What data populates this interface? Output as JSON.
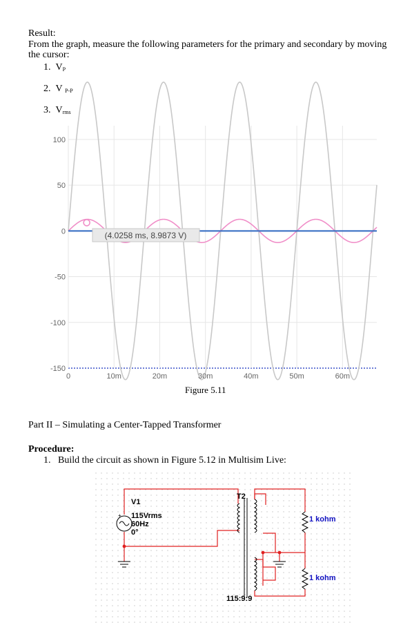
{
  "result": {
    "heading": "Result:",
    "instructions_line1": "From the graph, measure the following parameters for the primary and secondary by moving",
    "instructions_line2": "the cursor:",
    "items": [
      {
        "num": "1.",
        "base": "V",
        "sub": "P"
      },
      {
        "num": "2.",
        "base": "V",
        "sub": "P-P"
      },
      {
        "num": "3.",
        "base": "V",
        "sub": "rms"
      }
    ]
  },
  "chart_data": {
    "type": "line",
    "x_tick_labels": [
      "0",
      "10m",
      "20m",
      "30m",
      "40m",
      "50m",
      "60m"
    ],
    "x_ticks": [
      0,
      0.01,
      0.02,
      0.03,
      0.04,
      0.05,
      0.06
    ],
    "y_tick_labels": [
      "100",
      "50",
      "0",
      "-50",
      "-100",
      "-150"
    ],
    "y_ticks": [
      100,
      50,
      0,
      -50,
      -100,
      -150
    ],
    "xlim": [
      0,
      0.0675
    ],
    "ylim": [
      -150,
      115
    ],
    "grid": true,
    "series": [
      {
        "color": "#c8c8c8",
        "amplitude": 162.6,
        "frequency_hz": 60,
        "phase": "sine"
      },
      {
        "color": "#f08ec8",
        "amplitude": 12.7,
        "frequency_hz": 60,
        "phase": "sine"
      },
      {
        "color": "#7030a0",
        "amplitude": 0,
        "frequency_hz": 60,
        "phase": "flat"
      },
      {
        "color": "#3a78c8",
        "amplitude": 0,
        "frequency_hz": 60,
        "phase": "flat"
      }
    ],
    "cursor": {
      "x": 0.0040258,
      "y": 8.9873,
      "label": "(4.0258 ms, 8.9873 V)"
    }
  },
  "figure1": {
    "caption": "Figure 5.11"
  },
  "part2": {
    "heading": "Part II – Simulating a Center-Tapped Transformer"
  },
  "procedure": {
    "heading": "Procedure:",
    "num": "1.",
    "step1": "Build the circuit as shown in Figure 5.12 in Multisim Live:"
  },
  "circuit": {
    "source_name": "V1",
    "source_voltage": "115Vrms",
    "source_freq": "60Hz",
    "source_phase": "0°",
    "transformer_name": "T2",
    "transformer_ratio": "115:9:9",
    "resistor1": "1 kohm",
    "resistor2": "1 kohm",
    "colors": {
      "wire": "#e02020",
      "label": "#1010c0",
      "component": "#000000"
    }
  }
}
